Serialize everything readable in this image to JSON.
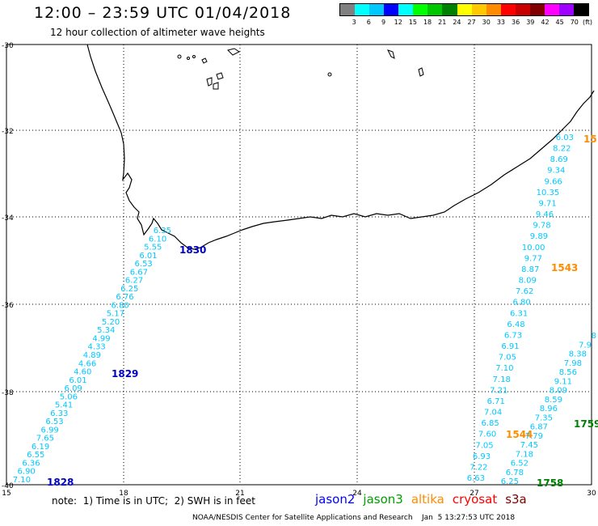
{
  "header": {
    "title": "12:00 – 23:59 UTC 01/04/2018",
    "subtitle": "12 hour collection of altimeter wave heights"
  },
  "legend": {
    "unit": "(ft)",
    "colors": [
      "#808080",
      "#00ffff",
      "#00c8ff",
      "#0000ff",
      "#00ffff",
      "#00ff00",
      "#00c800",
      "#008000",
      "#ffff00",
      "#ffc800",
      "#ff8c00",
      "#ff0000",
      "#c80000",
      "#800000",
      "#ff00ff",
      "#a000ff",
      "#000000"
    ],
    "labels": [
      "3",
      "6",
      "9",
      "12",
      "15",
      "18",
      "21",
      "24",
      "27",
      "30",
      "33",
      "36",
      "39",
      "42",
      "45",
      "70"
    ]
  },
  "axes": {
    "lon_labels": [
      "15",
      "18",
      "21",
      "24",
      "27",
      "30"
    ],
    "lat_labels": [
      "-30",
      "-32",
      "-34",
      "-36",
      "-38",
      "-40"
    ]
  },
  "tracks": [
    {
      "name": "track-1828",
      "color": "#00c8ff",
      "label": "1828",
      "label_color": "#0000c0",
      "values": [
        "7.10",
        "6.90",
        "6.36",
        "6.55",
        "6.19",
        "7.65",
        "6.99",
        "6.53",
        "6.33",
        "5.41",
        "5.06",
        "6.09",
        "6.01",
        "4.60",
        "4.66",
        "4.89",
        "4.33",
        "4.99",
        "5.34",
        "5.20",
        "5.17",
        "6.80",
        "6.76",
        "6.25",
        "6.27",
        "6.67",
        "6.53",
        "6.01",
        "5.55",
        "6.10",
        "6.35"
      ]
    },
    {
      "name": "track-1829",
      "color": "#00c8ff",
      "label": "1829",
      "label_color": "#0000c0",
      "values": []
    },
    {
      "name": "track-1830",
      "color": "#00c8ff",
      "label": "1830",
      "label_color": "#0000c0",
      "values": []
    },
    {
      "name": "track-1544",
      "color": "#00c8ff",
      "label": "1544",
      "label_color": "#ff8c00",
      "values": [
        "6.63",
        "7.22",
        "6.93",
        "7.05",
        "7.60",
        "6.85",
        "7.04",
        "6.71",
        "7.21",
        "7.18",
        "7.10",
        "7.05",
        "6.91",
        "6.73",
        "6.48",
        "6.31",
        "6.80",
        "7.62",
        "8.09",
        "8.87",
        "9.77",
        "10.00",
        "9.89",
        "9.78",
        "9.46",
        "9.71",
        "10.35",
        "9.66",
        "9.34",
        "8.69",
        "8.22",
        "6.03"
      ]
    },
    {
      "name": "track-1543",
      "color": "#ff8c00",
      "label": "1543",
      "label_color": "#ff8c00",
      "values": []
    },
    {
      "name": "track-1758",
      "color": "#00c8ff",
      "label": "1758",
      "label_color": "#008000",
      "values": [
        "6.25",
        "6.78",
        "6.52",
        "7.18",
        "7.45",
        "7.79",
        "6.87",
        "7.35",
        "8.96",
        "8.59",
        "8.09",
        "9.11",
        "8.56",
        "7.98",
        "8.38",
        "7.9",
        "8"
      ]
    },
    {
      "name": "track-1759",
      "color": "#008000",
      "label": "1759",
      "label_color": "#008000",
      "values": []
    },
    {
      "name": "track-15",
      "color": "#ff8c00",
      "label": "15",
      "label_color": "#ff8c00",
      "values": []
    }
  ],
  "note": "note:  1) Time is in UTC;  2) SWH is in feet",
  "satellites": [
    {
      "name": "jason2",
      "color": "#0000ff"
    },
    {
      "name": "jason3",
      "color": "#00a000"
    },
    {
      "name": "altika",
      "color": "#ff8c00"
    },
    {
      "name": "cryosat",
      "color": "#ff0000"
    },
    {
      "name": "s3a",
      "color": "#800000"
    }
  ],
  "footer": "NOAA/NESDIS Center for Satellite Applications and Research    Jan  5 13:27:53 UTC 2018"
}
